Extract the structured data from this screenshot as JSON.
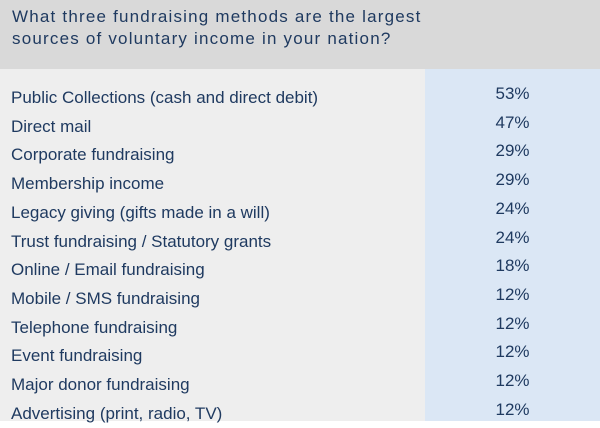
{
  "question": {
    "line1": "What three fundraising methods are the largest",
    "line2": "sources of voluntary income in your nation?"
  },
  "chart_data": {
    "type": "table",
    "title": "What three fundraising methods are the largest sources of voluntary income in your nation?",
    "categories": [
      "Public Collections (cash and direct debit)",
      "Direct mail",
      "Corporate fundraising",
      "Membership income",
      "Legacy giving (gifts made in a will)",
      "Trust fundraising / Statutory grants",
      "Online / Email fundraising",
      "Mobile / SMS fundraising",
      "Telephone fundraising",
      "Event fundraising",
      "Major donor fundraising",
      "Advertising (print, radio, TV)"
    ],
    "values": [
      53,
      47,
      29,
      29,
      24,
      24,
      18,
      12,
      12,
      12,
      12,
      12
    ],
    "value_labels": [
      "53%",
      "47%",
      "29%",
      "29%",
      "24%",
      "24%",
      "18%",
      "12%",
      "12%",
      "12%",
      "12%",
      "12%"
    ]
  },
  "colors": {
    "header_bg": "#d9d9d9",
    "label_col_bg": "#eeeeee",
    "value_col_bg": "#dbe7f5",
    "text": "#1f3a60"
  }
}
